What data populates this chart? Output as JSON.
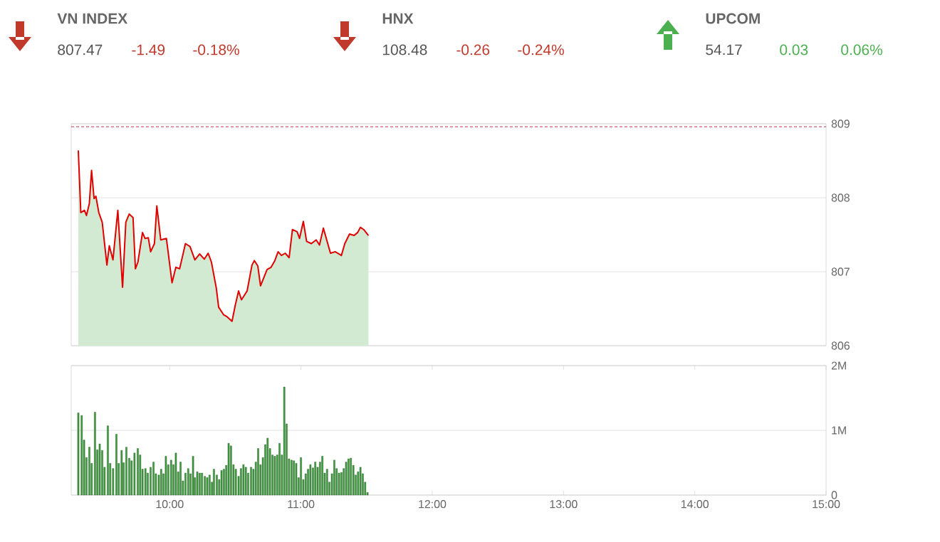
{
  "chart_data": [
    {
      "type": "other",
      "data_labels": true,
      "categories": [
        "VN INDEX",
        "HNX",
        "UPCOM"
      ],
      "series": [
        {
          "color": "#555555",
          "values": [
            807.47,
            108.48,
            54.17
          ]
        },
        {
          "colors": [
            "#c0392b",
            "#c0392b",
            "#4caf50"
          ],
          "values": [
            -1.49,
            -0.26,
            0.03
          ]
        },
        {
          "colors": [
            "#c0392b",
            "#c0392b",
            "#4caf50"
          ],
          "values": [
            -0.18,
            -0.24,
            0.06
          ],
          "value_labels": [
            "-0.18%",
            "-0.24%",
            "0.06%"
          ]
        }
      ]
    },
    {
      "type": "area",
      "color": "#e00000",
      "xlim": [
        9.25,
        15
      ],
      "ylim": [
        806,
        809
      ],
      "yticks": [
        806,
        807,
        808,
        809
      ],
      "tick_labels": "y",
      "grid": "y",
      "ref_lines": [
        {
          "axis": "y",
          "value": 808.96,
          "color": "#b00020",
          "line_style": "dashed"
        }
      ],
      "x": [
        9.304,
        9.323,
        9.351,
        9.366,
        9.388,
        9.405,
        9.424,
        9.438,
        9.46,
        9.486,
        9.522,
        9.54,
        9.568,
        9.605,
        9.641,
        9.666,
        9.692,
        9.721,
        9.739,
        9.758,
        9.793,
        9.812,
        9.837,
        9.855,
        9.884,
        9.902,
        9.932,
        9.975,
        10.018,
        10.047,
        10.076,
        10.12,
        10.155,
        10.192,
        10.228,
        10.264,
        10.293,
        10.318,
        10.355,
        10.373,
        10.41,
        10.438,
        10.475,
        10.5,
        10.525,
        10.547,
        10.59,
        10.627,
        10.645,
        10.671,
        10.692,
        10.717,
        10.742,
        10.772,
        10.801,
        10.826,
        10.851,
        10.88,
        10.91,
        10.935,
        10.971,
        10.989,
        11.018,
        11.043,
        11.079,
        11.116,
        11.141,
        11.171,
        11.199,
        11.225,
        11.261,
        11.308,
        11.334,
        11.37,
        11.405,
        11.432,
        11.453,
        11.478,
        11.514
      ],
      "values": [
        808.64,
        807.8,
        807.83,
        807.76,
        807.92,
        808.37,
        807.99,
        808.02,
        807.8,
        807.67,
        807.09,
        807.35,
        807.16,
        807.83,
        806.79,
        807.67,
        807.78,
        807.73,
        807.04,
        807.13,
        807.53,
        807.45,
        807.46,
        807.27,
        807.38,
        807.89,
        807.43,
        807.45,
        806.85,
        807.06,
        807.04,
        807.38,
        807.34,
        807.16,
        807.24,
        807.17,
        807.25,
        807.13,
        806.78,
        806.52,
        806.42,
        806.39,
        806.33,
        806.55,
        806.74,
        806.62,
        806.74,
        807.09,
        807.15,
        807.08,
        806.81,
        806.92,
        807.03,
        807.06,
        807.15,
        807.27,
        807.22,
        807.25,
        807.19,
        807.57,
        807.54,
        807.45,
        807.68,
        807.41,
        807.38,
        807.43,
        807.36,
        807.59,
        807.41,
        807.25,
        807.27,
        807.22,
        807.38,
        807.51,
        807.49,
        807.53,
        807.6,
        807.57,
        807.49
      ]
    },
    {
      "type": "bar",
      "color": "#3f9a3f",
      "xlim": [
        9.25,
        15
      ],
      "ylim": [
        0,
        2
      ],
      "yticks": [
        0,
        {
          "value": 1,
          "label": "1M"
        },
        {
          "value": 2,
          "label": "2M"
        }
      ],
      "grid": "y",
      "xticks": [
        {
          "value": 10,
          "label": "10:00"
        },
        {
          "value": 11,
          "label": "11:00"
        },
        {
          "value": 12,
          "label": "12:00"
        },
        {
          "value": 13,
          "label": "13:00"
        },
        {
          "value": 14,
          "label": "14:00"
        },
        {
          "value": 15,
          "label": "15:00"
        }
      ],
      "x": [
        9.304,
        9.33,
        9.348,
        9.366,
        9.388,
        9.406,
        9.431,
        9.449,
        9.467,
        9.486,
        9.504,
        9.529,
        9.547,
        9.569,
        9.594,
        9.612,
        9.634,
        9.649,
        9.67,
        9.692,
        9.71,
        9.732,
        9.757,
        9.775,
        9.793,
        9.815,
        9.833,
        9.855,
        9.877,
        9.895,
        9.917,
        9.935,
        9.953,
        9.971,
        9.989,
        10.011,
        10.029,
        10.047,
        10.065,
        10.083,
        10.101,
        10.12,
        10.141,
        10.159,
        10.178,
        10.192,
        10.21,
        10.228,
        10.246,
        10.268,
        10.286,
        10.304,
        10.322,
        10.337,
        10.359,
        10.377,
        10.395,
        10.413,
        10.431,
        10.449,
        10.467,
        10.486,
        10.504,
        10.525,
        10.543,
        10.562,
        10.58,
        10.598,
        10.62,
        10.638,
        10.656,
        10.674,
        10.692,
        10.71,
        10.728,
        10.746,
        10.764,
        10.783,
        10.801,
        10.819,
        10.837,
        10.855,
        10.873,
        10.891,
        10.909,
        10.928,
        10.946,
        10.964,
        10.982,
        11.0,
        11.018,
        11.036,
        11.054,
        11.072,
        11.091,
        11.109,
        11.127,
        11.145,
        11.163,
        11.181,
        11.199,
        11.217,
        11.236,
        11.254,
        11.272,
        11.29,
        11.308,
        11.326,
        11.344,
        11.362,
        11.38,
        11.399,
        11.417,
        11.435,
        11.453,
        11.471,
        11.489,
        11.507
      ],
      "values": [
        1.27,
        1.23,
        0.85,
        0.58,
        0.74,
        0.49,
        1.28,
        0.7,
        0.79,
        0.69,
        0.43,
        1.07,
        0.49,
        0.41,
        0.94,
        0.49,
        0.69,
        0.5,
        0.74,
        0.57,
        0.53,
        0.65,
        0.72,
        0.62,
        0.4,
        0.41,
        0.34,
        0.43,
        0.51,
        0.33,
        0.31,
        0.4,
        0.33,
        0.6,
        0.47,
        0.54,
        0.47,
        0.65,
        0.36,
        0.51,
        0.22,
        0.34,
        0.41,
        0.33,
        0.6,
        0.27,
        0.36,
        0.34,
        0.34,
        0.29,
        0.27,
        0.31,
        0.2,
        0.4,
        0.31,
        0.24,
        0.38,
        0.4,
        0.46,
        0.8,
        0.76,
        0.47,
        0.4,
        0.29,
        0.41,
        0.47,
        0.43,
        0.34,
        0.43,
        0.4,
        0.51,
        0.72,
        0.47,
        0.58,
        0.78,
        0.88,
        0.72,
        0.62,
        0.6,
        0.62,
        0.8,
        0.62,
        1.67,
        1.1,
        0.56,
        0.54,
        0.53,
        0.49,
        0.27,
        0.58,
        0.24,
        0.33,
        0.4,
        0.47,
        0.42,
        0.51,
        0.43,
        0.51,
        0.6,
        0.34,
        0.4,
        0.2,
        0.33,
        0.54,
        0.41,
        0.34,
        0.35,
        0.41,
        0.51,
        0.56,
        0.57,
        0.46,
        0.31,
        0.36,
        0.43,
        0.33,
        0.2,
        0.04
      ]
    }
  ]
}
